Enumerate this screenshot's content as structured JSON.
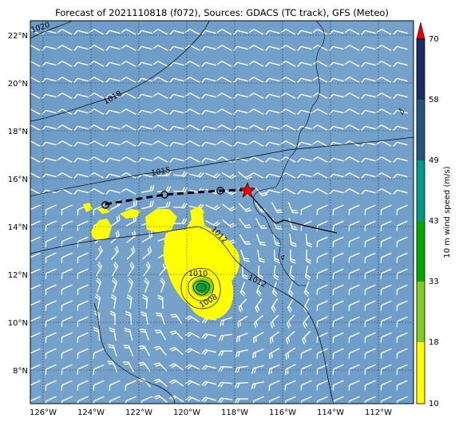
{
  "title": "Forecast of 2021110818 (f072), Sources: GDACS (TC track), GFS (Meteo)",
  "lon_labels": [
    "126°W",
    "124°W",
    "122°W",
    "120°W",
    "118°W",
    "116°W",
    "114°W",
    "112°W"
  ],
  "lat_labels": [
    "22°N",
    "20°N",
    "18°N",
    "16°N",
    "14°N",
    "12°N",
    "10°N",
    "8°N"
  ],
  "colorbar": {
    "label": "10 m wind speed (m/s)",
    "ticks": [
      "10",
      "18",
      "33",
      "43",
      "49",
      "58",
      "70"
    ],
    "colors": [
      "#ffff00",
      "#7fcc22",
      "#00aa00",
      "#009988",
      "#225577",
      "#1a2e66"
    ],
    "extend_color": "#ee0000"
  },
  "isobar_labels": [
    "1020",
    "1018",
    "1015",
    "1012",
    "1012",
    "1010",
    "1008"
  ],
  "track": {
    "current_position": "red star",
    "forecast_points": 3
  },
  "colors": {
    "ocean": "#6e9ec8",
    "wind_barbs": "#ffffff",
    "high_wind": "#ffff00",
    "track": "#000000",
    "center": "#ee0000"
  }
}
